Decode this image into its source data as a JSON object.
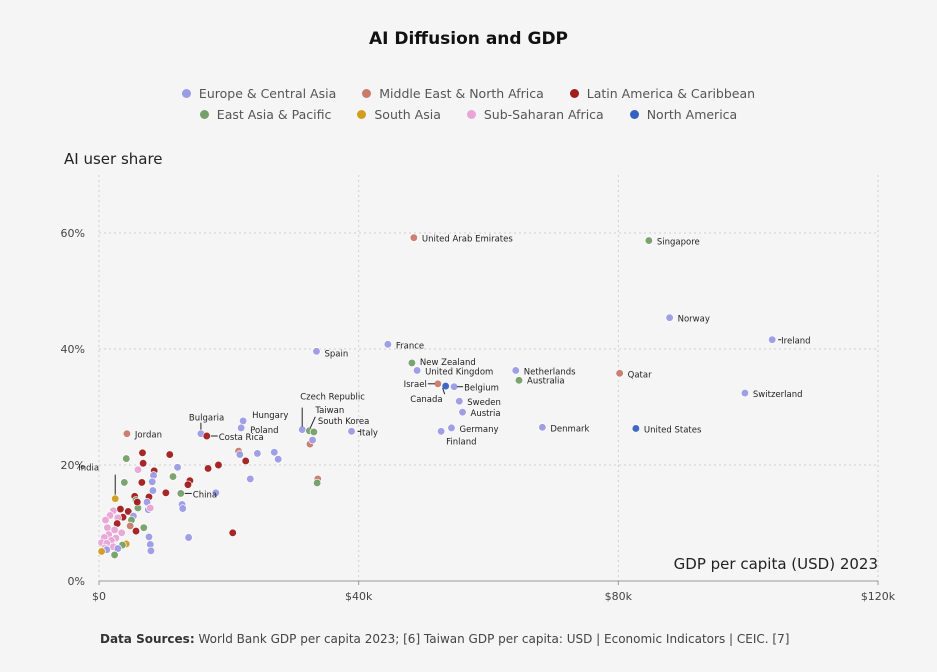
{
  "colors": {
    "Europe & Central Asia": "#9c9be6",
    "Middle East & North Africa": "#c97a6a",
    "Latin America & Caribbean": "#a21d1d",
    "East Asia & Pacific": "#75a06a",
    "South Asia": "#d19d1c",
    "Sub-Saharan Africa": "#e8a5d6",
    "North America": "#3560c4"
  },
  "legend_rows": [
    [
      "Europe & Central Asia",
      "Middle East & North Africa",
      "Latin America & Caribbean"
    ],
    [
      "East Asia & Pacific",
      "South Asia",
      "Sub-Saharan Africa",
      "North America"
    ]
  ],
  "footer": {
    "label": "Data Sources:",
    "text": "World Bank GDP per capita 2023; [6]  Taiwan GDP per capita: USD | Economic Indicators | CEIC. [7]"
  },
  "chart_data": {
    "type": "scatter",
    "title": "AI Diffusion and GDP",
    "xlabel": "GDP per capita (USD) 2023",
    "ylabel": "AI user share",
    "xlim": [
      0,
      120000
    ],
    "ylim": [
      0,
      70
    ],
    "xticks": [
      0,
      40000,
      80000,
      120000
    ],
    "xtick_labels": [
      "$0",
      "$40k",
      "$80k",
      "$120k"
    ],
    "yticks": [
      0,
      20,
      40,
      60
    ],
    "ytick_labels": [
      "0%",
      "20%",
      "40%",
      "60%"
    ],
    "legend_position": "top-center",
    "labeled_points": [
      {
        "name": "United Arab Emirates",
        "region": "Middle East & North Africa",
        "x": 48500,
        "y": 59.2
      },
      {
        "name": "Singapore",
        "region": "East Asia & Pacific",
        "x": 84700,
        "y": 58.7
      },
      {
        "name": "Norway",
        "region": "Europe & Central Asia",
        "x": 87900,
        "y": 45.4
      },
      {
        "name": "Ireland",
        "region": "Europe & Central Asia",
        "x": 103700,
        "y": 41.6
      },
      {
        "name": "France",
        "region": "Europe & Central Asia",
        "x": 44500,
        "y": 40.8
      },
      {
        "name": "Spain",
        "region": "Europe & Central Asia",
        "x": 33500,
        "y": 39.6
      },
      {
        "name": "New Zealand",
        "region": "East Asia & Pacific",
        "x": 48200,
        "y": 37.6
      },
      {
        "name": "United Kingdom",
        "region": "Europe & Central Asia",
        "x": 49000,
        "y": 36.3
      },
      {
        "name": "Netherlands",
        "region": "Europe & Central Asia",
        "x": 64200,
        "y": 36.3
      },
      {
        "name": "Qatar",
        "region": "Middle East & North Africa",
        "x": 80200,
        "y": 35.8
      },
      {
        "name": "Australia",
        "region": "East Asia & Pacific",
        "x": 64700,
        "y": 34.6
      },
      {
        "name": "Israel",
        "region": "Middle East & North Africa",
        "x": 52200,
        "y": 34.0
      },
      {
        "name": "Canada",
        "region": "North America",
        "x": 53400,
        "y": 33.6
      },
      {
        "name": "Belgium",
        "region": "Europe & Central Asia",
        "x": 54700,
        "y": 33.5
      },
      {
        "name": "Switzerland",
        "region": "Europe & Central Asia",
        "x": 99500,
        "y": 32.4
      },
      {
        "name": "Sweden",
        "region": "Europe & Central Asia",
        "x": 55500,
        "y": 31.0
      },
      {
        "name": "Austria",
        "region": "Europe & Central Asia",
        "x": 56000,
        "y": 29.1
      },
      {
        "name": "Germany",
        "region": "Europe & Central Asia",
        "x": 54300,
        "y": 26.4
      },
      {
        "name": "Finland",
        "region": "Europe & Central Asia",
        "x": 52700,
        "y": 25.8
      },
      {
        "name": "Denmark",
        "region": "Europe & Central Asia",
        "x": 68300,
        "y": 26.5
      },
      {
        "name": "United States",
        "region": "North America",
        "x": 82700,
        "y": 26.3
      },
      {
        "name": "Italy",
        "region": "Europe & Central Asia",
        "x": 38900,
        "y": 25.8
      },
      {
        "name": "Czech Republic",
        "region": "Europe & Central Asia",
        "x": 31300,
        "y": 26.1
      },
      {
        "name": "Taiwan",
        "region": "East Asia & Pacific",
        "x": 32400,
        "y": 25.9
      },
      {
        "name": "South Korea",
        "region": "East Asia & Pacific",
        "x": 33100,
        "y": 25.7
      },
      {
        "name": "Hungary",
        "region": "Europe & Central Asia",
        "x": 22200,
        "y": 27.6
      },
      {
        "name": "Poland",
        "region": "Europe & Central Asia",
        "x": 21900,
        "y": 26.4
      },
      {
        "name": "Bulgaria",
        "region": "Europe & Central Asia",
        "x": 15700,
        "y": 25.4
      },
      {
        "name": "Costa Rica",
        "region": "Latin America & Caribbean",
        "x": 16600,
        "y": 25.0
      },
      {
        "name": "Jordan",
        "region": "Middle East & North Africa",
        "x": 4300,
        "y": 25.4
      },
      {
        "name": "India",
        "region": "South Asia",
        "x": 2500,
        "y": 14.2
      },
      {
        "name": "China",
        "region": "East Asia & Pacific",
        "x": 12600,
        "y": 15.1
      }
    ],
    "unlabeled_points": [
      {
        "region": "Middle East & North Africa",
        "x": 32500,
        "y": 23.6
      },
      {
        "region": "Middle East & North Africa",
        "x": 33700,
        "y": 17.6
      },
      {
        "region": "East Asia & Pacific",
        "x": 33600,
        "y": 16.9
      },
      {
        "region": "Europe & Central Asia",
        "x": 32900,
        "y": 24.3
      },
      {
        "region": "Europe & Central Asia",
        "x": 27000,
        "y": 22.2
      },
      {
        "region": "Europe & Central Asia",
        "x": 27600,
        "y": 21.0
      },
      {
        "region": "Europe & Central Asia",
        "x": 24400,
        "y": 22.0
      },
      {
        "region": "Middle East & North Africa",
        "x": 21500,
        "y": 22.4
      },
      {
        "region": "Europe & Central Asia",
        "x": 21700,
        "y": 21.8
      },
      {
        "region": "Latin America & Caribbean",
        "x": 22600,
        "y": 20.7
      },
      {
        "region": "Europe & Central Asia",
        "x": 23300,
        "y": 17.6
      },
      {
        "region": "Latin America & Caribbean",
        "x": 18400,
        "y": 20.0
      },
      {
        "region": "Latin America & Caribbean",
        "x": 16800,
        "y": 19.4
      },
      {
        "region": "Europe & Central Asia",
        "x": 18000,
        "y": 15.2
      },
      {
        "region": "Latin America & Caribbean",
        "x": 20600,
        "y": 8.3
      },
      {
        "region": "Latin America & Caribbean",
        "x": 10900,
        "y": 21.8
      },
      {
        "region": "East Asia & Pacific",
        "x": 11400,
        "y": 18.0
      },
      {
        "region": "Europe & Central Asia",
        "x": 12100,
        "y": 19.6
      },
      {
        "region": "Latin America & Caribbean",
        "x": 14000,
        "y": 17.3
      },
      {
        "region": "Latin America & Caribbean",
        "x": 13700,
        "y": 16.6
      },
      {
        "region": "Latin America & Caribbean",
        "x": 10300,
        "y": 15.2
      },
      {
        "region": "Europe & Central Asia",
        "x": 12800,
        "y": 13.2
      },
      {
        "region": "Europe & Central Asia",
        "x": 12900,
        "y": 12.5
      },
      {
        "region": "Europe & Central Asia",
        "x": 13800,
        "y": 7.5
      },
      {
        "region": "East Asia & Pacific",
        "x": 4200,
        "y": 21.1
      },
      {
        "region": "Latin America & Caribbean",
        "x": 6700,
        "y": 22.1
      },
      {
        "region": "Latin America & Caribbean",
        "x": 6800,
        "y": 20.3
      },
      {
        "region": "Sub-Saharan Africa",
        "x": 6000,
        "y": 19.2
      },
      {
        "region": "Latin America & Caribbean",
        "x": 8500,
        "y": 19.0
      },
      {
        "region": "East Asia & Pacific",
        "x": 3900,
        "y": 17.0
      },
      {
        "region": "Europe & Central Asia",
        "x": 8400,
        "y": 18.2
      },
      {
        "region": "Europe & Central Asia",
        "x": 8200,
        "y": 17.1
      },
      {
        "region": "Latin America & Caribbean",
        "x": 6600,
        "y": 17.0
      },
      {
        "region": "Latin America & Caribbean",
        "x": 5500,
        "y": 14.6
      },
      {
        "region": "East Asia & Pacific",
        "x": 5700,
        "y": 13.9
      },
      {
        "region": "Latin America & Caribbean",
        "x": 7700,
        "y": 14.5
      },
      {
        "region": "Europe & Central Asia",
        "x": 8300,
        "y": 15.6
      },
      {
        "region": "Europe & Central Asia",
        "x": 7400,
        "y": 13.6
      },
      {
        "region": "Europe & Central Asia",
        "x": 7600,
        "y": 12.3
      },
      {
        "region": "Sub-Saharan Africa",
        "x": 7900,
        "y": 12.6
      },
      {
        "region": "East Asia & Pacific",
        "x": 6000,
        "y": 12.6
      },
      {
        "region": "Latin America & Caribbean",
        "x": 5900,
        "y": 13.6
      },
      {
        "region": "Latin America & Caribbean",
        "x": 3300,
        "y": 12.4
      },
      {
        "region": "Sub-Saharan Africa",
        "x": 2200,
        "y": 12.1
      },
      {
        "region": "Sub-Saharan Africa",
        "x": 1700,
        "y": 11.3
      },
      {
        "region": "Latin America & Caribbean",
        "x": 4500,
        "y": 12.0
      },
      {
        "region": "Latin America & Caribbean",
        "x": 3700,
        "y": 11.0
      },
      {
        "region": "Europe & Central Asia",
        "x": 5300,
        "y": 11.2
      },
      {
        "region": "East Asia & Pacific",
        "x": 5000,
        "y": 10.5
      },
      {
        "region": "Sub-Saharan Africa",
        "x": 1000,
        "y": 10.5
      },
      {
        "region": "Sub-Saharan Africa",
        "x": 2900,
        "y": 10.9
      },
      {
        "region": "Latin America & Caribbean",
        "x": 2800,
        "y": 9.9
      },
      {
        "region": "Middle East & North Africa",
        "x": 4800,
        "y": 9.5
      },
      {
        "region": "Sub-Saharan Africa",
        "x": 1300,
        "y": 9.2
      },
      {
        "region": "Sub-Saharan Africa",
        "x": 2400,
        "y": 8.8
      },
      {
        "region": "East Asia & Pacific",
        "x": 6900,
        "y": 9.2
      },
      {
        "region": "Latin America & Caribbean",
        "x": 5700,
        "y": 8.6
      },
      {
        "region": "Sub-Saharan Africa",
        "x": 3500,
        "y": 8.3
      },
      {
        "region": "Sub-Saharan Africa",
        "x": 1500,
        "y": 8.0
      },
      {
        "region": "Sub-Saharan Africa",
        "x": 800,
        "y": 7.5
      },
      {
        "region": "Europe & Central Asia",
        "x": 7700,
        "y": 7.6
      },
      {
        "region": "Sub-Saharan Africa",
        "x": 2600,
        "y": 7.4
      },
      {
        "region": "Sub-Saharan Africa",
        "x": 1900,
        "y": 7.0
      },
      {
        "region": "Sub-Saharan Africa",
        "x": 400,
        "y": 6.6
      },
      {
        "region": "Sub-Saharan Africa",
        "x": 1200,
        "y": 6.5
      },
      {
        "region": "South Asia",
        "x": 4200,
        "y": 6.4
      },
      {
        "region": "Europe & Central Asia",
        "x": 7900,
        "y": 6.3
      },
      {
        "region": "East Asia & Pacific",
        "x": 3600,
        "y": 6.2
      },
      {
        "region": "Sub-Saharan Africa",
        "x": 2200,
        "y": 5.9
      },
      {
        "region": "Sub-Saharan Africa",
        "x": 900,
        "y": 5.7
      },
      {
        "region": "Europe & Central Asia",
        "x": 2900,
        "y": 5.6
      },
      {
        "region": "Europe & Central Asia",
        "x": 1200,
        "y": 5.4
      },
      {
        "region": "Europe & Central Asia",
        "x": 8000,
        "y": 5.2
      },
      {
        "region": "South Asia",
        "x": 400,
        "y": 5.1
      },
      {
        "region": "East Asia & Pacific",
        "x": 2400,
        "y": 4.5
      }
    ]
  }
}
